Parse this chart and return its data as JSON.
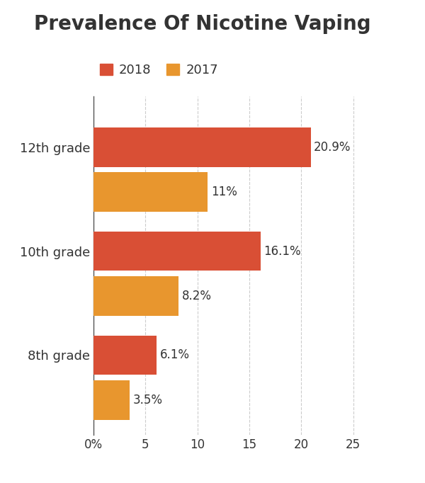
{
  "title": "Prevalence Of Nicotine Vaping",
  "categories": [
    "12th grade",
    "10th grade",
    "8th grade"
  ],
  "values_2018": [
    20.9,
    16.1,
    6.1
  ],
  "values_2017": [
    11.0,
    8.2,
    3.5
  ],
  "labels_2018": [
    "20.9%",
    "16.1%",
    "6.1%"
  ],
  "labels_2017": [
    "11%",
    "8.2%",
    "3.5%"
  ],
  "color_2018": "#d94f35",
  "color_2017": "#e8962e",
  "xlim": [
    0,
    27
  ],
  "xticks": [
    0,
    5,
    10,
    15,
    20,
    25
  ],
  "xticklabels": [
    "0%",
    "5",
    "10",
    "15",
    "20",
    "25"
  ],
  "bar_height": 0.38,
  "bar_gap": 0.05,
  "title_fontsize": 20,
  "legend_fontsize": 13,
  "label_fontsize": 12,
  "tick_fontsize": 12,
  "ytick_fontsize": 13,
  "background_color": "#ffffff",
  "text_color": "#333333",
  "grid_color": "#cccccc",
  "legend_label_2018": "2018",
  "legend_label_2017": "2017"
}
